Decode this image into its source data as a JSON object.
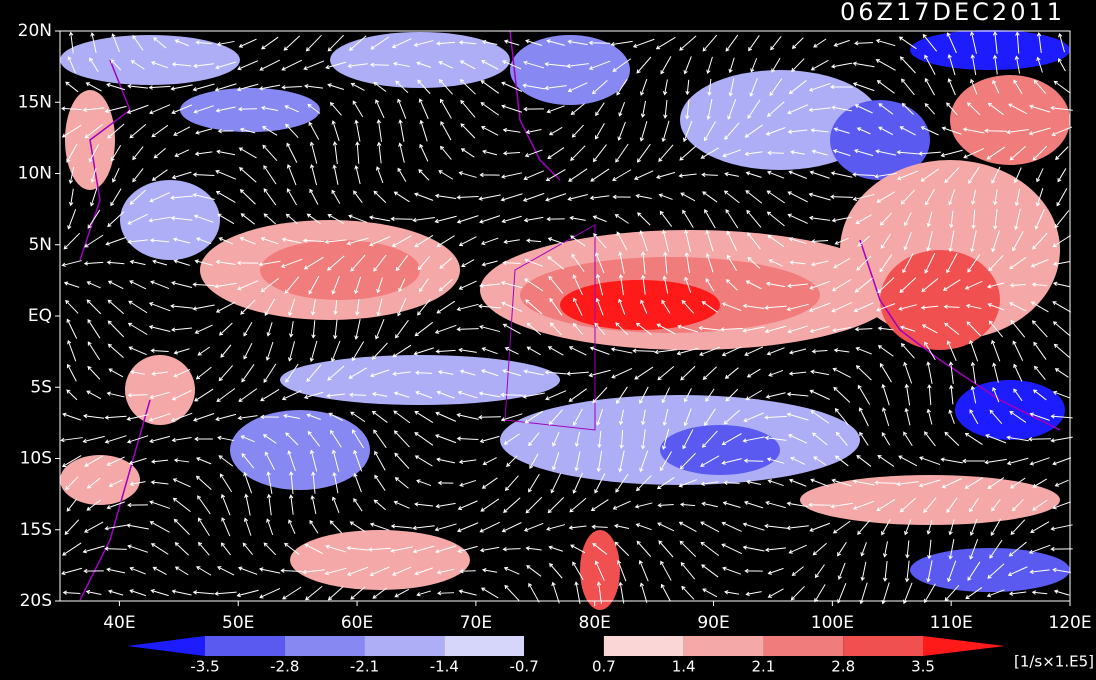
{
  "map": {
    "title": "06Z17DEC2011",
    "xlim": [
      35,
      120
    ],
    "ylim": [
      -20,
      20
    ],
    "xticks": [
      {
        "value": 40,
        "label": "40E"
      },
      {
        "value": 50,
        "label": "50E"
      },
      {
        "value": 60,
        "label": "60E"
      },
      {
        "value": 70,
        "label": "70E"
      },
      {
        "value": 80,
        "label": "80E"
      },
      {
        "value": 90,
        "label": "90E"
      },
      {
        "value": 100,
        "label": "100E"
      },
      {
        "value": 110,
        "label": "110E"
      },
      {
        "value": 120,
        "label": "120E"
      }
    ],
    "yticks": [
      {
        "value": 20,
        "label": "20N"
      },
      {
        "value": 15,
        "label": "15N"
      },
      {
        "value": 10,
        "label": "10N"
      },
      {
        "value": 5,
        "label": "5N"
      },
      {
        "value": 0,
        "label": "EQ"
      },
      {
        "value": -5,
        "label": "5S"
      },
      {
        "value": -10,
        "label": "10S"
      },
      {
        "value": -15,
        "label": "15S"
      },
      {
        "value": -20,
        "label": "20S"
      }
    ],
    "colorbar": {
      "levels": [
        -3.5,
        -2.8,
        -2.1,
        -1.4,
        -0.7,
        0.7,
        1.4,
        2.1,
        2.8,
        3.5
      ],
      "colors": [
        "#1c1cff",
        "#5a5af0",
        "#8888f2",
        "#aeaef6",
        "#d6d6fb",
        "#000000",
        "#fbd6d6",
        "#f5a8a8",
        "#f07c7c",
        "#f05050",
        "#ff1a1a"
      ],
      "unit": "[1/s×1.E5]"
    }
  }
}
